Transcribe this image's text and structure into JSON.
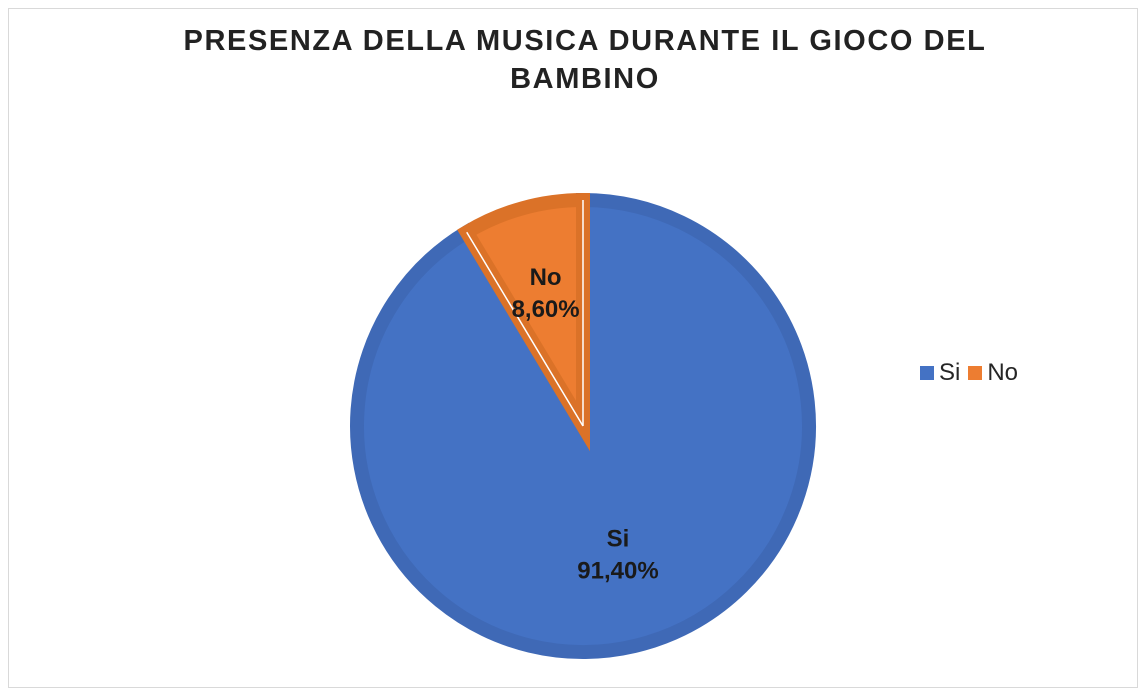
{
  "chart_data": {
    "type": "pie",
    "title": "PRESENZA DELLA MUSICA DURANTE IL GIOCO DEL BAMBINO",
    "categories": [
      "Si",
      "No"
    ],
    "values": [
      91.4,
      8.6
    ],
    "value_labels": [
      "91,40%",
      "8,60%"
    ],
    "colors": [
      "#4472c4",
      "#ed7d31"
    ],
    "legend_position": "right"
  }
}
